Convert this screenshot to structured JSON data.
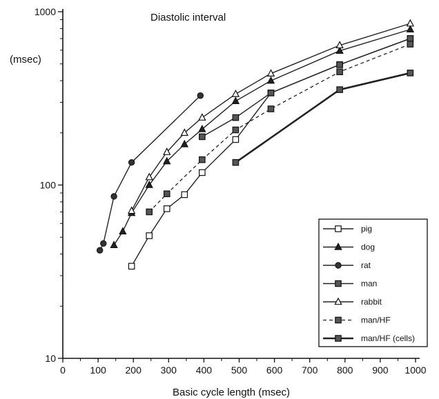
{
  "chart_data": {
    "type": "line",
    "title": "Diastolic interval",
    "xlabel": "Basic cycle length (msec)",
    "ylabel": "(msec)",
    "xlim": [
      0,
      1000
    ],
    "ylim": [
      10,
      1000
    ],
    "yscale": "log",
    "grid": false,
    "legend_position": "bottom-right",
    "x_ticks": [
      0,
      100,
      200,
      300,
      400,
      500,
      600,
      700,
      800,
      900,
      1000
    ],
    "x_tick_labels": [
      "0",
      "100",
      "200",
      "300",
      "400",
      "500",
      "600",
      "700",
      "800",
      "900",
      "1000"
    ],
    "y_ticks": [
      10,
      100,
      1000
    ],
    "y_tick_labels": [
      "10",
      "100",
      "1000"
    ],
    "series": [
      {
        "name": "pig",
        "marker": "square-open",
        "line": "solid",
        "color": "#222222",
        "x": [
          195,
          245,
          295,
          345,
          395,
          490,
          590,
          785,
          985
        ],
        "y": [
          34,
          51,
          73,
          88,
          118,
          183,
          340,
          495,
          700
        ]
      },
      {
        "name": "dog",
        "marker": "triangle-filled",
        "line": "solid",
        "color": "#222222",
        "x": [
          145,
          170,
          195,
          245,
          295,
          345,
          395,
          490,
          590,
          785,
          985
        ],
        "y": [
          45,
          54,
          69,
          100,
          137,
          172,
          210,
          305,
          400,
          595,
          790
        ]
      },
      {
        "name": "rat",
        "marker": "circle-filled",
        "line": "solid",
        "color": "#222222",
        "x": [
          105,
          115,
          145,
          195,
          390
        ],
        "y": [
          42,
          46,
          86,
          135,
          328
        ]
      },
      {
        "name": "man",
        "marker": "square-filled",
        "line": "solid",
        "color": "#222222",
        "x": [
          395,
          490,
          590,
          785,
          985
        ],
        "y": [
          190,
          245,
          340,
          495,
          700
        ]
      },
      {
        "name": "rabbit",
        "marker": "triangle-open",
        "line": "solid",
        "color": "#222222",
        "x": [
          195,
          245,
          295,
          345,
          395,
          490,
          590,
          785,
          985
        ],
        "y": [
          71,
          111,
          155,
          200,
          245,
          335,
          440,
          640,
          855
        ]
      },
      {
        "name": "man/HF",
        "marker": "square-filled",
        "line": "dashed",
        "color": "#222222",
        "x": [
          245,
          295,
          395,
          490,
          590,
          785,
          985
        ],
        "y": [
          70,
          89,
          140,
          208,
          275,
          450,
          650
        ]
      },
      {
        "name": "man/HF  (cells)",
        "marker": "square-filled",
        "line": "thick",
        "color": "#222222",
        "x": [
          490,
          785,
          985
        ],
        "y": [
          135,
          355,
          443
        ]
      }
    ]
  }
}
